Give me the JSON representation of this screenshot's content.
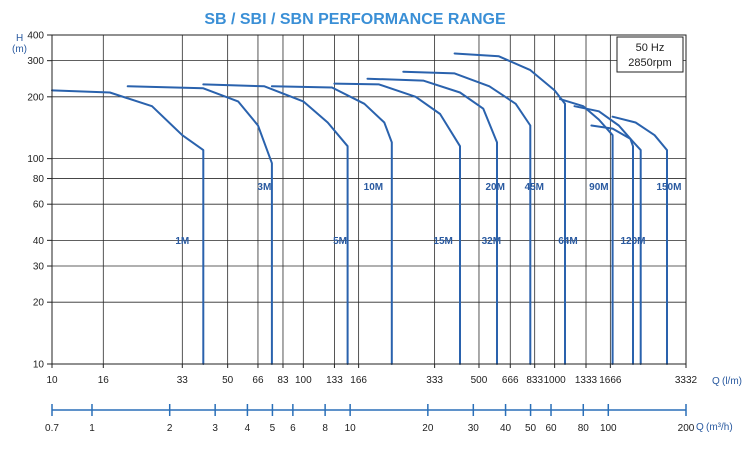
{
  "chart_data": {
    "type": "line",
    "title": "SB / SBI / SBN  PERFORMANCE RANGE",
    "y_axis": {
      "label": "H",
      "unit": "(m)",
      "scale": "log",
      "range": [
        10,
        400
      ],
      "ticks": [
        10,
        20,
        30,
        40,
        60,
        80,
        100,
        200,
        300,
        400
      ]
    },
    "x_axis": {
      "label": "Q",
      "unit": "(l/m)",
      "scale": "log",
      "range": [
        10,
        3332
      ],
      "ticks": [
        10,
        16,
        33,
        50,
        66,
        83,
        100,
        133,
        166,
        333,
        500,
        666,
        833,
        1000,
        1333,
        1666,
        3332
      ]
    },
    "x_axis_secondary": {
      "label": "Q",
      "unit": "(m³/h)",
      "scale": "log",
      "range": [
        0.7,
        200
      ],
      "ticks": [
        0.7,
        1,
        2,
        3,
        4,
        5,
        6,
        8,
        10,
        20,
        30,
        40,
        50,
        60,
        80,
        100,
        200
      ]
    },
    "annotation": [
      "50 Hz",
      "2850rpm"
    ],
    "grid": true,
    "series": [
      {
        "name": "1M",
        "label_at": [
          33,
          40
        ],
        "points": [
          [
            10,
            215
          ],
          [
            17,
            210
          ],
          [
            25,
            180
          ],
          [
            33,
            130
          ],
          [
            40,
            110
          ],
          [
            40,
            10
          ]
        ]
      },
      {
        "name": "3M",
        "label_at": [
          70,
          73
        ],
        "points": [
          [
            20,
            225
          ],
          [
            40,
            220
          ],
          [
            55,
            190
          ],
          [
            66,
            145
          ],
          [
            75,
            95
          ],
          [
            75,
            10
          ]
        ]
      },
      {
        "name": "5M",
        "label_at": [
          140,
          40
        ],
        "points": [
          [
            40,
            230
          ],
          [
            70,
            225
          ],
          [
            100,
            190
          ],
          [
            125,
            150
          ],
          [
            150,
            115
          ],
          [
            150,
            10
          ]
        ]
      },
      {
        "name": "10M",
        "label_at": [
          190,
          73
        ],
        "points": [
          [
            75,
            225
          ],
          [
            130,
            222
          ],
          [
            175,
            185
          ],
          [
            210,
            150
          ],
          [
            225,
            120
          ],
          [
            225,
            10
          ]
        ]
      },
      {
        "name": "15M",
        "label_at": [
          360,
          40
        ],
        "points": [
          [
            133,
            232
          ],
          [
            200,
            230
          ],
          [
            280,
            200
          ],
          [
            350,
            165
          ],
          [
            420,
            115
          ],
          [
            420,
            10
          ]
        ]
      },
      {
        "name": "20M",
        "label_at": [
          580,
          73
        ],
        "points": [
          [
            180,
            245
          ],
          [
            300,
            240
          ],
          [
            420,
            210
          ],
          [
            520,
            175
          ],
          [
            590,
            120
          ],
          [
            590,
            10
          ]
        ]
      },
      {
        "name": "32M",
        "label_at": [
          560,
          40
        ],
        "points": [
          [
            250,
            265
          ],
          [
            400,
            260
          ],
          [
            550,
            225
          ],
          [
            700,
            185
          ],
          [
            800,
            145
          ],
          [
            800,
            10
          ]
        ]
      },
      {
        "name": "45M",
        "label_at": [
          830,
          73
        ],
        "points": [
          [
            400,
            325
          ],
          [
            600,
            315
          ],
          [
            800,
            270
          ],
          [
            1000,
            215
          ],
          [
            1100,
            185
          ],
          [
            1100,
            10
          ]
        ]
      },
      {
        "name": "64M",
        "label_at": [
          1130,
          40
        ],
        "points": [
          [
            1050,
            195
          ],
          [
            1300,
            180
          ],
          [
            1500,
            155
          ],
          [
            1700,
            130
          ],
          [
            1700,
            10
          ]
        ]
      },
      {
        "name": "90M",
        "label_at": [
          1500,
          73
        ],
        "points": [
          [
            1200,
            180
          ],
          [
            1500,
            170
          ],
          [
            1800,
            145
          ],
          [
            2000,
            125
          ],
          [
            2050,
            115
          ],
          [
            2050,
            10
          ]
        ]
      },
      {
        "name": "120M",
        "label_at": [
          2050,
          40
        ],
        "points": [
          [
            1400,
            145
          ],
          [
            1700,
            140
          ],
          [
            2000,
            125
          ],
          [
            2200,
            110
          ],
          [
            2200,
            90
          ],
          [
            2200,
            10
          ]
        ]
      },
      {
        "name": "150M",
        "label_at": [
          2850,
          73
        ],
        "points": [
          [
            1700,
            160
          ],
          [
            2100,
            150
          ],
          [
            2500,
            130
          ],
          [
            2800,
            110
          ],
          [
            2800,
            100
          ],
          [
            2800,
            10
          ]
        ]
      }
    ]
  }
}
